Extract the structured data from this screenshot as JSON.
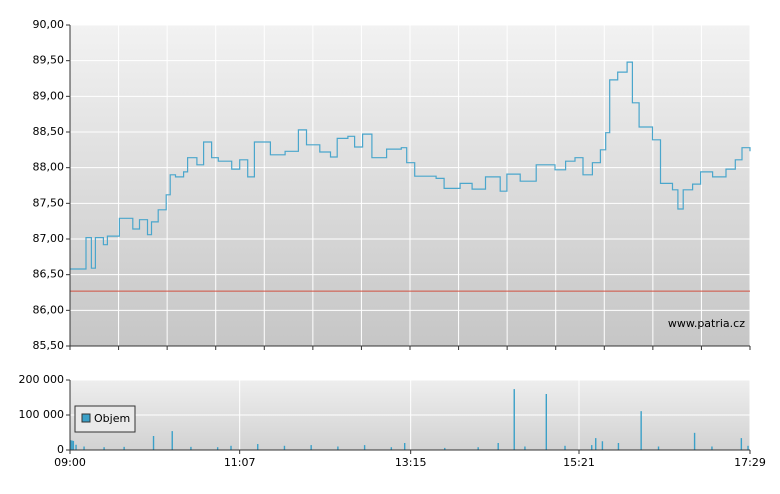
{
  "chart_data": [
    {
      "type": "line",
      "x": [
        "09:00",
        "09:09",
        "09:12",
        "09:16",
        "09:19",
        "09:25",
        "09:28",
        "09:35",
        "09:37",
        "09:43",
        "09:47",
        "09:52",
        "09:58",
        "10:01",
        "10:06",
        "10:12",
        "10:15",
        "10:19",
        "10:25",
        "10:28",
        "10:35",
        "10:40",
        "10:46",
        "10:51",
        "11:01",
        "11:07",
        "11:13",
        "11:18",
        "11:24",
        "11:30",
        "11:41",
        "11:51",
        "11:57",
        "12:07",
        "12:15",
        "12:20",
        "12:28",
        "12:33",
        "12:39",
        "12:46",
        "12:57",
        "13:08",
        "13:12",
        "13:18",
        "13:34",
        "13:40",
        "13:52",
        "14:01",
        "14:11",
        "14:22",
        "14:27",
        "14:37",
        "14:49",
        "15:03",
        "15:11",
        "15:18",
        "15:24",
        "15:31",
        "15:37",
        "15:41",
        "15:44",
        "15:50",
        "15:57",
        "16:01",
        "16:06",
        "16:16",
        "16:22",
        "16:31",
        "16:35",
        "16:39",
        "16:46",
        "16:52",
        "17:01",
        "17:11",
        "17:18",
        "17:23",
        "17:29"
      ],
      "series": [
        {
          "color": "#4aa6cc",
          "values": [
            86.58,
            86.58,
            87.02,
            86.59,
            87.02,
            86.92,
            87.04,
            87.04,
            87.29,
            87.29,
            87.14,
            87.27,
            87.06,
            87.24,
            87.41,
            87.62,
            87.9,
            87.87,
            87.94,
            88.14,
            88.04,
            88.36,
            88.14,
            88.09,
            87.98,
            88.11,
            87.87,
            88.36,
            88.36,
            88.18,
            88.23,
            88.53,
            88.32,
            88.22,
            88.15,
            88.41,
            88.44,
            88.29,
            88.47,
            88.14,
            88.26,
            88.28,
            88.07,
            87.88,
            87.85,
            87.71,
            87.78,
            87.7,
            87.87,
            87.67,
            87.91,
            87.81,
            88.04,
            87.97,
            88.09,
            88.14,
            87.9,
            88.07,
            88.25,
            88.49,
            89.23,
            89.34,
            89.48,
            88.91,
            88.57,
            88.39,
            87.78,
            87.69,
            87.42,
            87.69,
            87.77,
            87.94,
            87.87,
            87.98,
            88.11,
            88.28,
            88.23
          ]
        }
      ],
      "xlim": [
        "09:00",
        "17:29"
      ],
      "ylim": [
        85.5,
        90
      ],
      "yticks": [
        {
          "value": 85.5,
          "label": "85,50"
        },
        {
          "value": 86,
          "label": "86,00"
        },
        {
          "value": 86.5,
          "label": "86,50"
        },
        {
          "value": 87,
          "label": "87,00"
        },
        {
          "value": 87.5,
          "label": "87,50"
        },
        {
          "value": 88,
          "label": "88,00"
        },
        {
          "value": 88.5,
          "label": "88,50"
        },
        {
          "value": 89,
          "label": "89,00"
        },
        {
          "value": 89.5,
          "label": "89,50"
        },
        {
          "value": 90,
          "label": "90,00"
        }
      ],
      "reference_line": 86.27,
      "reference_color": "#d05040",
      "watermark": "www.patria.cz",
      "grid": true
    },
    {
      "type": "bar",
      "x": [
        "09:00",
        "09:01",
        "09:02",
        "09:04",
        "09:10",
        "09:25",
        "09:40",
        "10:02",
        "10:16",
        "10:30",
        "10:50",
        "11:00",
        "11:20",
        "11:40",
        "12:00",
        "12:20",
        "12:40",
        "13:00",
        "13:10",
        "13:40",
        "14:05",
        "14:20",
        "14:32",
        "14:40",
        "14:56",
        "15:10",
        "15:30",
        "15:33",
        "15:38",
        "15:50",
        "16:07",
        "16:20",
        "16:47",
        "17:00",
        "17:22",
        "17:27"
      ],
      "series": [
        {
          "name": "Objem",
          "color": "#3aa0c8",
          "values": [
            28000,
            27000,
            26000,
            15000,
            10000,
            8000,
            9000,
            40000,
            54000,
            9000,
            8000,
            12000,
            17000,
            12000,
            14000,
            10000,
            14000,
            8000,
            20000,
            6000,
            8000,
            20000,
            174000,
            10000,
            160000,
            12000,
            14000,
            34000,
            25000,
            20000,
            111000,
            10000,
            49000,
            10000,
            34000,
            12000
          ]
        }
      ],
      "xlim": [
        "09:00",
        "17:29"
      ],
      "xticks": [
        "09:00",
        "11:07",
        "13:15",
        "15:21",
        "17:29"
      ],
      "ylim": [
        0,
        200000
      ],
      "yticks": [
        0,
        {
          "value": 100000,
          "label": "100 000"
        },
        {
          "value": 200000,
          "label": "200 000"
        }
      ],
      "grid": true
    }
  ]
}
